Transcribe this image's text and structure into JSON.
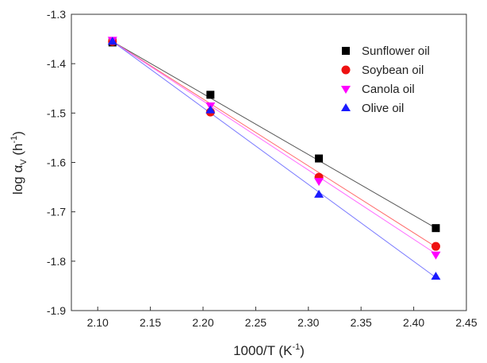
{
  "chart_data": {
    "type": "scatter",
    "xlabel": {
      "main": "1000/T (K",
      "sup": "-1",
      "close": ")"
    },
    "ylabel": {
      "main": "log α",
      "sub": "V",
      "mid": " (h",
      "sup": "-1",
      "close": ")"
    },
    "xlim": [
      2.075,
      2.45
    ],
    "ylim": [
      -1.9,
      -1.3
    ],
    "xticks": [
      "2.10",
      "2.15",
      "2.20",
      "2.25",
      "2.30",
      "2.35",
      "2.40",
      "2.45"
    ],
    "yticks": [
      "-1.3",
      "-1.4",
      "-1.5",
      "-1.6",
      "-1.7",
      "-1.8",
      "-1.9"
    ],
    "grid": false,
    "legend_position": "top-right",
    "series": [
      {
        "name": "Sunflower oil",
        "marker": "square",
        "marker_color": "#000000",
        "line_color": "#555555",
        "x": [
          2.114,
          2.207,
          2.31,
          2.421
        ],
        "y": [
          -1.357,
          -1.463,
          -1.592,
          -1.733
        ],
        "fit": [
          [
            2.114,
            -1.355
          ],
          [
            2.421,
            -1.733
          ]
        ]
      },
      {
        "name": "Soybean oil",
        "marker": "circle",
        "marker_color": "#ee1111",
        "line_color": "#ff6b6b",
        "x": [
          2.114,
          2.207,
          2.31,
          2.421
        ],
        "y": [
          -1.355,
          -1.498,
          -1.63,
          -1.77
        ],
        "fit": [
          [
            2.114,
            -1.355
          ],
          [
            2.421,
            -1.771
          ]
        ]
      },
      {
        "name": "Canola oil",
        "marker": "triangle-down",
        "marker_color": "#ff00ff",
        "line_color": "#ff66ff",
        "x": [
          2.114,
          2.207,
          2.31,
          2.421
        ],
        "y": [
          -1.352,
          -1.485,
          -1.638,
          -1.787
        ],
        "fit": [
          [
            2.114,
            -1.355
          ],
          [
            2.421,
            -1.785
          ]
        ]
      },
      {
        "name": "Olive oil",
        "marker": "triangle-up",
        "marker_color": "#1a1aff",
        "line_color": "#7a7aff",
        "x": [
          2.114,
          2.207,
          2.31,
          2.421
        ],
        "y": [
          -1.355,
          -1.494,
          -1.665,
          -1.831
        ],
        "fit": [
          [
            2.114,
            -1.355
          ],
          [
            2.421,
            -1.833
          ]
        ]
      }
    ]
  }
}
